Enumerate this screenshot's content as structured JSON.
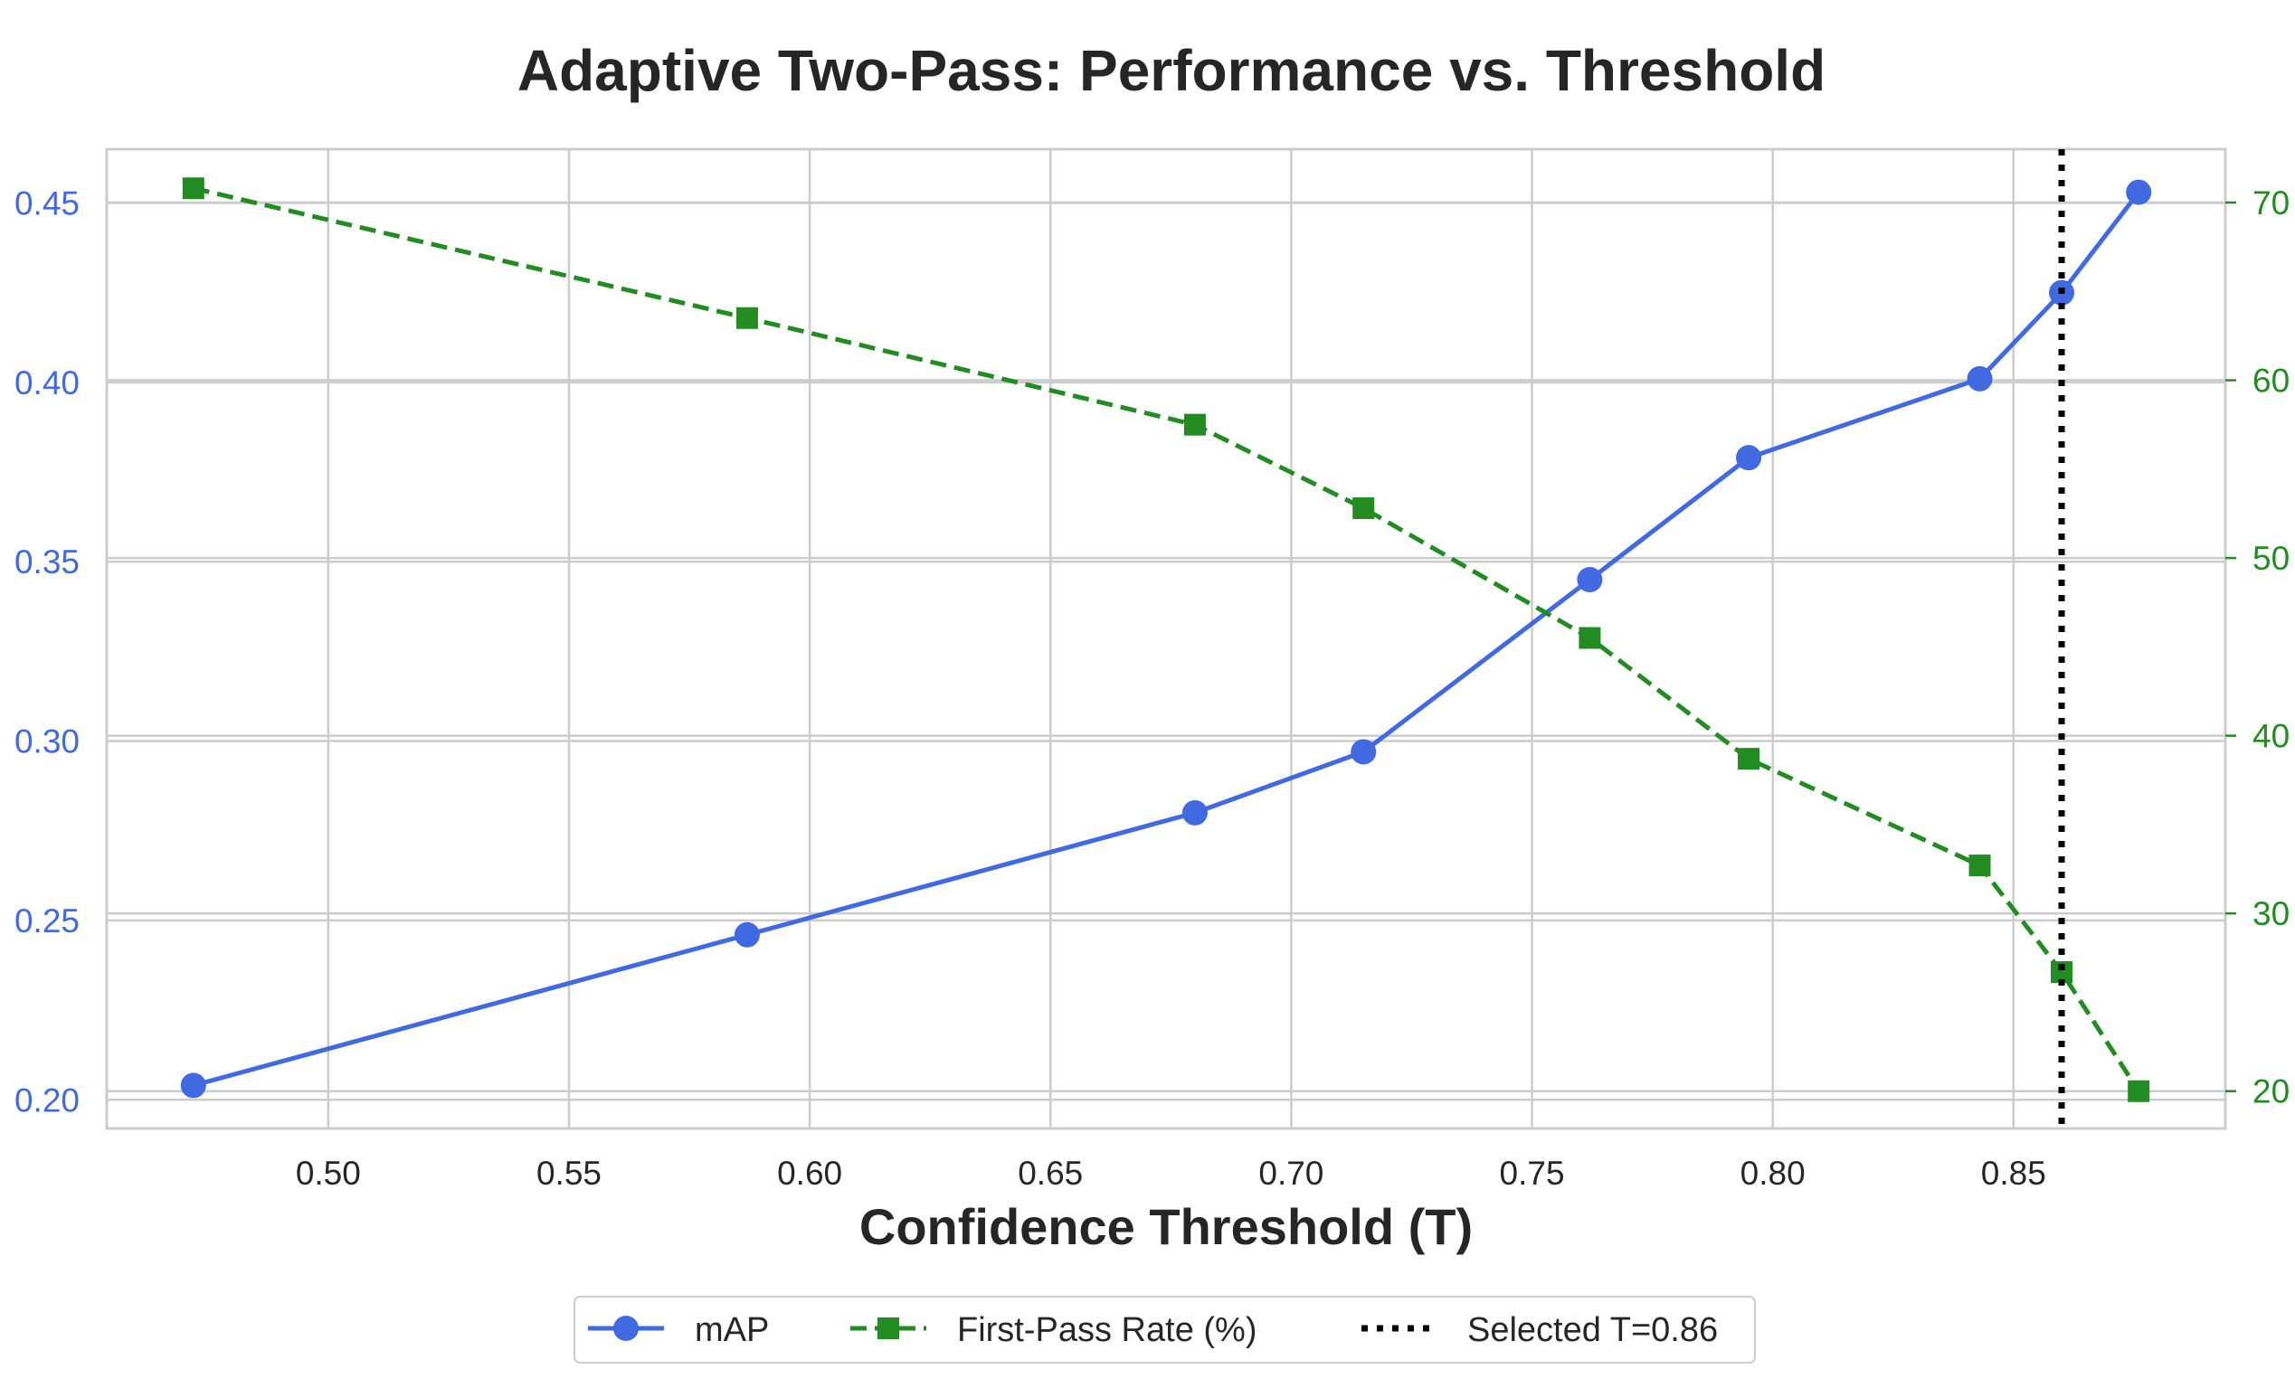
{
  "chart_data": {
    "type": "line",
    "title": "Adaptive Two-Pass: Performance vs. Threshold",
    "xlabel": "Confidence Threshold (T)",
    "ylabel_left": "",
    "ylabel_right": "",
    "x": [
      0.472,
      0.587,
      0.68,
      0.715,
      0.762,
      0.795,
      0.843,
      0.86,
      0.876
    ],
    "series": [
      {
        "name": "mAP",
        "axis": "left",
        "color": "#4169E1",
        "marker": "circle",
        "linestyle": "solid",
        "values": [
          0.204,
          0.246,
          0.28,
          0.297,
          0.345,
          0.379,
          0.401,
          0.425,
          0.453
        ]
      },
      {
        "name": "First-Pass Rate (%)",
        "axis": "right",
        "color": "#228B22",
        "marker": "square",
        "linestyle": "dashed",
        "values": [
          70.8,
          63.5,
          57.5,
          52.8,
          45.5,
          38.7,
          32.7,
          26.7,
          20.0
        ]
      }
    ],
    "vline": {
      "x": 0.86,
      "label": "Selected T=0.86",
      "color": "#000000",
      "linestyle": "dotted"
    },
    "xlim": [
      0.454,
      0.894
    ],
    "ylim_left": [
      0.192,
      0.465
    ],
    "ylim_right": [
      17.9,
      73.0
    ],
    "xticks": [
      0.5,
      0.55,
      0.6,
      0.65,
      0.7,
      0.75,
      0.8,
      0.85
    ],
    "xtick_labels": [
      "0.50",
      "0.55",
      "0.60",
      "0.65",
      "0.70",
      "0.75",
      "0.80",
      "0.85"
    ],
    "yticks_left": [
      0.2,
      0.25,
      0.3,
      0.35,
      0.4,
      0.45
    ],
    "ytick_labels_left": [
      "0.20",
      "0.25",
      "0.30",
      "0.35",
      "0.40",
      "0.45"
    ],
    "yticks_right": [
      20,
      30,
      40,
      50,
      60,
      70
    ],
    "ytick_labels_right": [
      "20",
      "30",
      "40",
      "50",
      "60",
      "70"
    ],
    "grid": true,
    "legend": {
      "position": "bottom-center",
      "entries": [
        "mAP",
        "First-Pass Rate (%)",
        "Selected T=0.86"
      ]
    },
    "colors": {
      "left_axis": "#4169E1",
      "right_axis": "#228B22",
      "grid": "#cccccc",
      "frame": "#cccccc",
      "text": "#262626"
    }
  }
}
